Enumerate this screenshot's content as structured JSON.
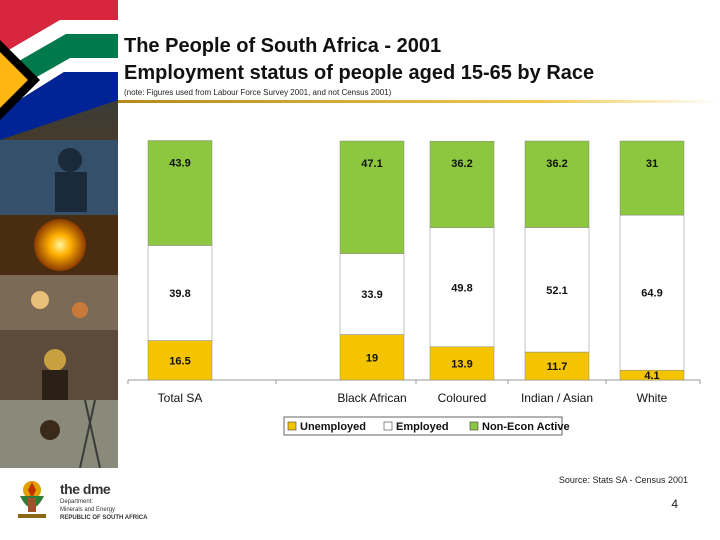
{
  "header": {
    "title_line1": "The People of South Africa - 2001",
    "title_line2": "Employment status of people aged 15-65 by Race",
    "note": "(note: Figures used from Labour Force Survey 2001, and not Census 2001)"
  },
  "footer": {
    "source": "Source: Stats SA - Census 2001",
    "page_number": "4",
    "logo": {
      "name": "the dme",
      "subtitle": [
        "Department:",
        "Minerals and Energy",
        "REPUBLIC OF SOUTH AFRICA"
      ]
    }
  },
  "colors": {
    "unemployed": "#F5C400",
    "employed": "#FFFFFF",
    "non_econ_active": "#8DC63F",
    "title_rule": "#D4A017"
  },
  "chart_data": {
    "type": "bar",
    "stacked": true,
    "percent": true,
    "categories": [
      "Total SA",
      "Black African",
      "Coloured",
      "Indian / Asian",
      "White"
    ],
    "series": [
      {
        "name": "Unemployed",
        "values": [
          16.5,
          19,
          13.9,
          11.7,
          4.1
        ]
      },
      {
        "name": "Employed",
        "values": [
          39.8,
          33.9,
          49.8,
          52.1,
          64.9
        ]
      },
      {
        "name": "Non-Econ Active",
        "values": [
          43.9,
          47.1,
          36.2,
          36.2,
          31
        ]
      }
    ],
    "legend": [
      "Unemployed",
      "Employed",
      "Non-Econ Active"
    ],
    "legend_position": "bottom",
    "ylim": [
      0,
      100
    ],
    "xlabel": "",
    "ylabel": ""
  }
}
